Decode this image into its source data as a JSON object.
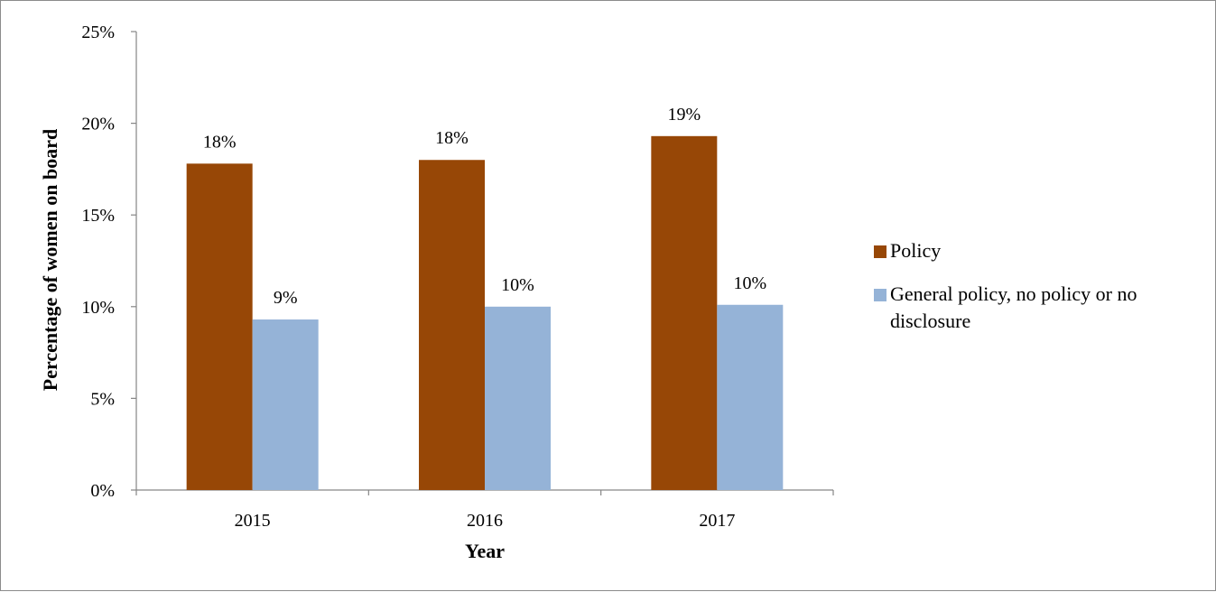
{
  "chart_data": {
    "type": "bar",
    "categories": [
      "2015",
      "2016",
      "2017"
    ],
    "series": [
      {
        "name": "Policy",
        "values": [
          17.8,
          18.0,
          19.3
        ],
        "labels": [
          "18%",
          "18%",
          "19%"
        ],
        "color": "#974706"
      },
      {
        "name": "General policy, no policy or no disclosure",
        "values": [
          9.3,
          10.0,
          10.1
        ],
        "labels": [
          "9%",
          "10%",
          "10%"
        ],
        "color": "#95b3d7"
      }
    ],
    "xlabel": "Year",
    "ylabel": "Percentage of women on board",
    "ylim": [
      0,
      25
    ],
    "yticks": [
      "0%",
      "5%",
      "10%",
      "15%",
      "20%",
      "25%"
    ],
    "grid": false,
    "legend_position": "right"
  }
}
